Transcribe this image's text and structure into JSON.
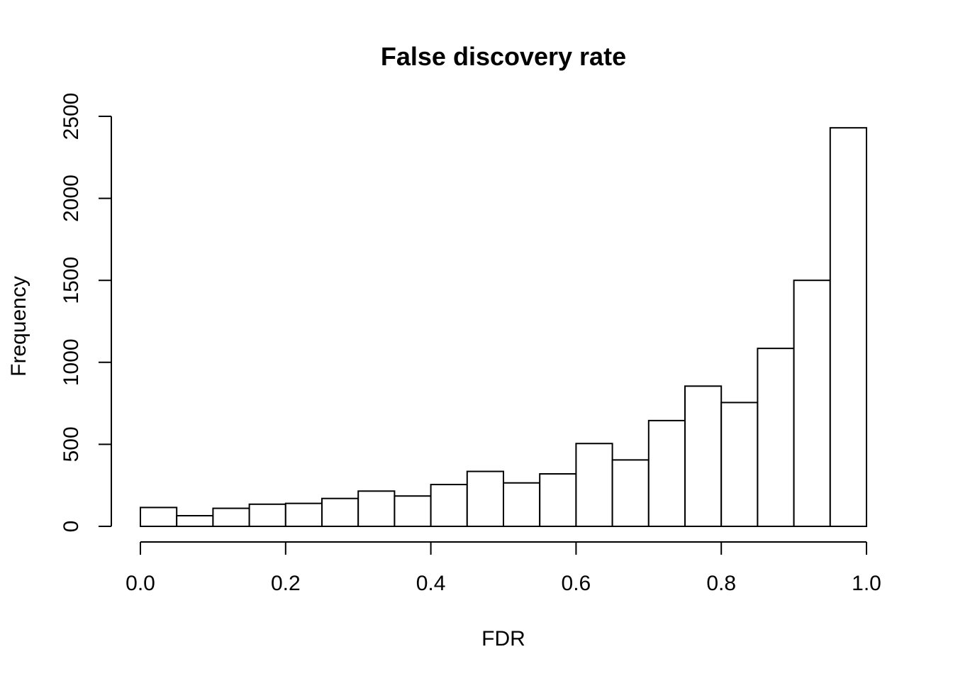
{
  "chart_data": {
    "type": "bar",
    "title": "False discovery rate",
    "xlabel": "FDR",
    "ylabel": "Frequency",
    "bin_width": 0.05,
    "bin_starts": [
      0.0,
      0.05,
      0.1,
      0.15,
      0.2,
      0.25,
      0.3,
      0.35,
      0.4,
      0.45,
      0.5,
      0.55,
      0.6,
      0.65,
      0.7,
      0.75,
      0.8,
      0.85,
      0.9,
      0.95
    ],
    "values": [
      115,
      65,
      110,
      135,
      140,
      170,
      215,
      185,
      255,
      335,
      265,
      320,
      505,
      405,
      645,
      855,
      755,
      1085,
      1500,
      2430
    ],
    "xlim": [
      0,
      1
    ],
    "ylim": [
      0,
      2500
    ],
    "x_ticks": [
      "0.0",
      "0.2",
      "0.4",
      "0.6",
      "0.8",
      "1.0"
    ],
    "y_ticks": [
      "0",
      "500",
      "1000",
      "1500",
      "2000",
      "2500"
    ],
    "grid": false,
    "colors": {
      "bar_fill": "#ffffff",
      "bar_stroke": "#000000"
    }
  }
}
